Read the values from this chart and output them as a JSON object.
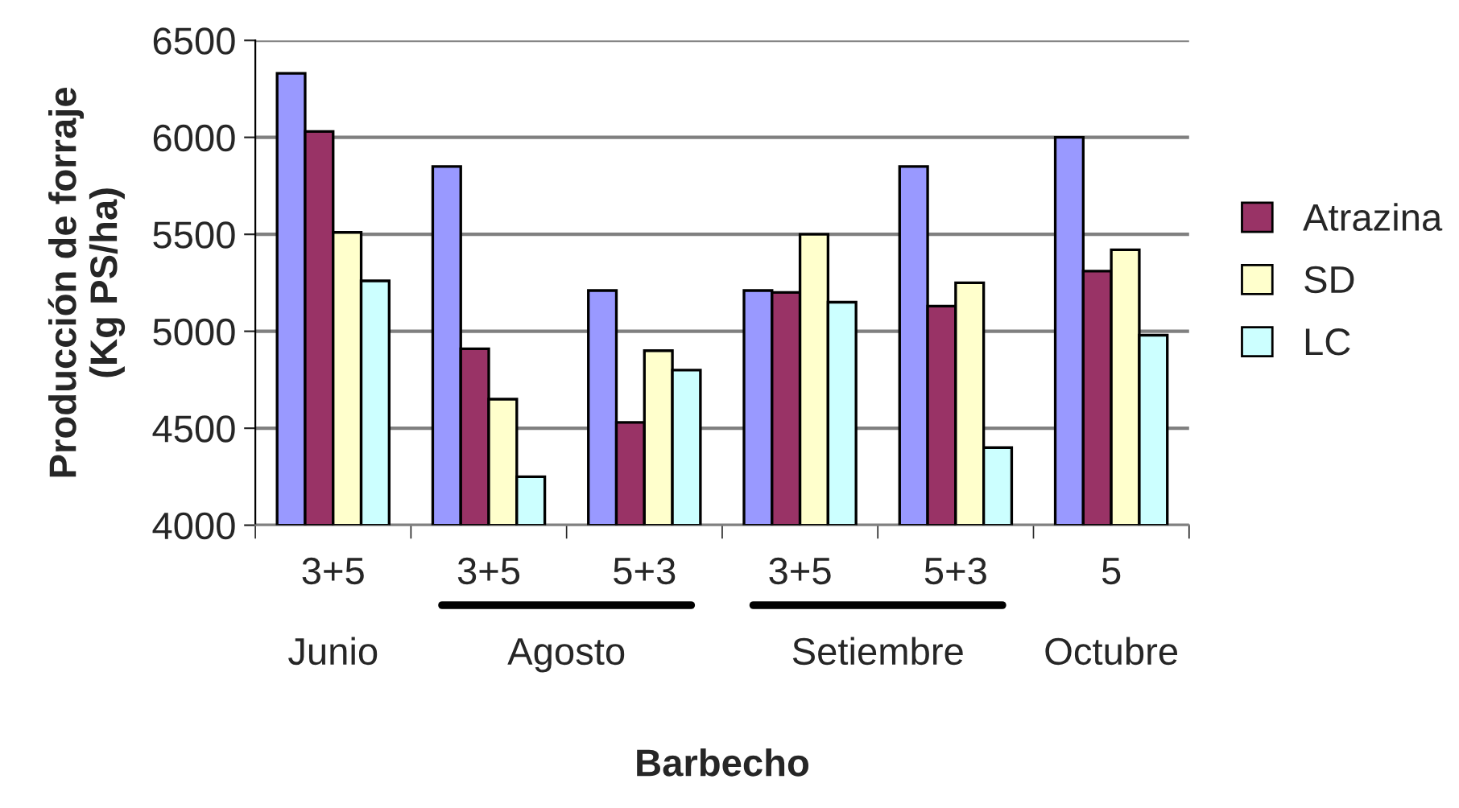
{
  "chart_data": {
    "type": "bar",
    "xlabel": "Barbecho",
    "ylabel": "Producción de forraje\n(Kg PS/ha)",
    "categories": [
      "3+5",
      "3+5",
      "5+3",
      "3+5",
      "5+3",
      "5"
    ],
    "series": [
      {
        "color": "#9999ff",
        "values": [
          6330,
          5850,
          5210,
          5210,
          5850,
          6000
        ]
      },
      {
        "name": "Atrazina",
        "color": "#993366",
        "values": [
          6030,
          4910,
          4530,
          5200,
          5130,
          5310
        ]
      },
      {
        "name": "SD",
        "color": "#ffffcc",
        "values": [
          5510,
          4650,
          4900,
          5500,
          5250,
          5420
        ]
      },
      {
        "name": "LC",
        "color": "#ccffff",
        "values": [
          5260,
          4250,
          4800,
          5150,
          4400,
          4980
        ]
      }
    ],
    "annotations": [
      "Junio",
      "Agosto",
      "Setiembre",
      "Octubre"
    ],
    "ylim": [
      4000,
      6500
    ],
    "yticks": [
      4000,
      4500,
      5000,
      5500,
      6000,
      6500
    ],
    "grid": "y",
    "legend": "right"
  }
}
